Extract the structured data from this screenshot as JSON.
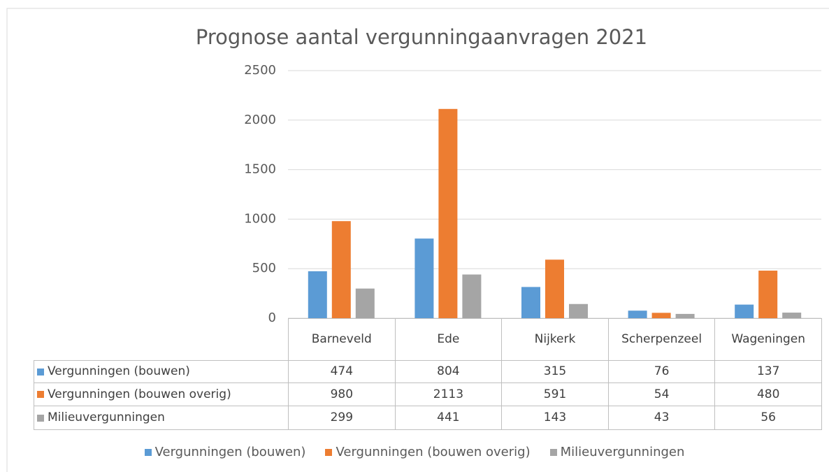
{
  "chart_data": {
    "type": "bar",
    "title": "Prognose aantal vergunningaanvragen 2021",
    "categories": [
      "Barneveld",
      "Ede",
      "Nijkerk",
      "Scherpenzeel",
      "Wageningen"
    ],
    "series": [
      {
        "name": "Vergunningen (bouwen)",
        "color": "#5b9bd5",
        "values": [
          474,
          804,
          315,
          76,
          137
        ]
      },
      {
        "name": "Vergunningen (bouwen overig)",
        "color": "#ed7d31",
        "values": [
          980,
          2113,
          591,
          54,
          480
        ]
      },
      {
        "name": "Milieuvergunningen",
        "color": "#a5a5a5",
        "values": [
          299,
          441,
          143,
          43,
          56
        ]
      }
    ],
    "ylim": [
      0,
      2500
    ],
    "yticks": [
      0,
      500,
      1000,
      1500,
      2000,
      2500
    ],
    "grid": true,
    "legend": "bottom",
    "data_table": true
  }
}
